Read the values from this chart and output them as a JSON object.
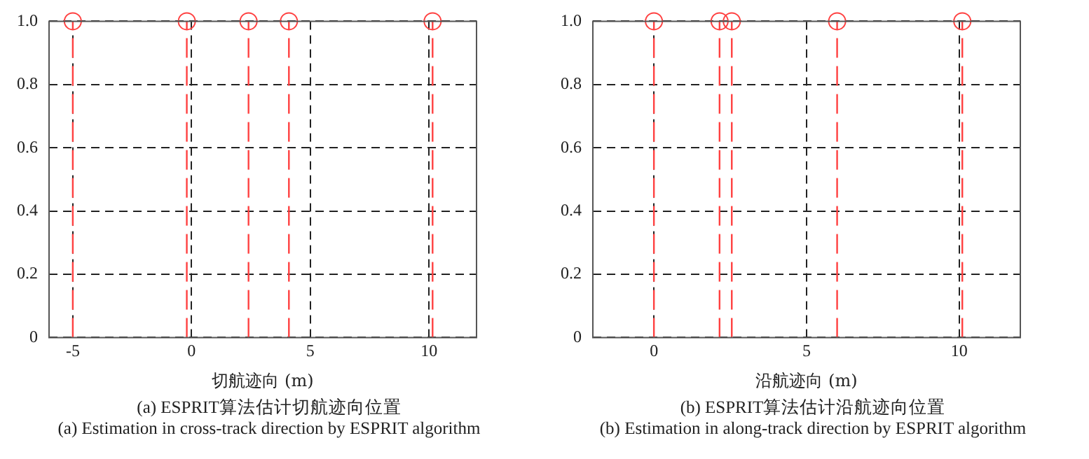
{
  "chart_data": [
    {
      "type": "lollipop",
      "xlabel": "切航迹向 (m)",
      "annotations": [
        "(a) ESPRIT算法估计切航迹向位置",
        "(a) Estimation in cross-track direction by ESPRIT algorithm"
      ],
      "x": [
        -5,
        -0.2,
        2.4,
        4.1,
        10.15
      ],
      "values": [
        1,
        1,
        1,
        1,
        1
      ],
      "color": "#ff4040",
      "marker": "circle",
      "line_style": "dashed",
      "xlim": [
        -6,
        12
      ],
      "xticks": [
        -5,
        0,
        5,
        10
      ],
      "ylim": [
        0,
        1
      ],
      "yticks": [
        0,
        0.2,
        0.4,
        0.6,
        0.8,
        {
          "value": 1,
          "label": "1.0"
        }
      ],
      "grid": true,
      "legend": false
    },
    {
      "type": "lollipop",
      "xlabel": "沿航迹向 (m)",
      "annotations": [
        "(b) ESPRIT算法估计沿航迹向位置",
        "(b) Estimation in along-track direction by ESPRIT algorithm"
      ],
      "x": [
        0,
        2.15,
        2.55,
        6,
        10.1
      ],
      "values": [
        1,
        1,
        1,
        1,
        1
      ],
      "color": "#ff4040",
      "marker": "circle",
      "line_style": "dashed",
      "xlim": [
        -2,
        12
      ],
      "xticks": [
        0,
        5,
        10
      ],
      "ylim": [
        0,
        1
      ],
      "yticks": [
        0,
        0.2,
        0.4,
        0.6,
        0.8,
        {
          "value": 1,
          "label": "1.0"
        }
      ],
      "grid": true,
      "legend": false
    }
  ]
}
